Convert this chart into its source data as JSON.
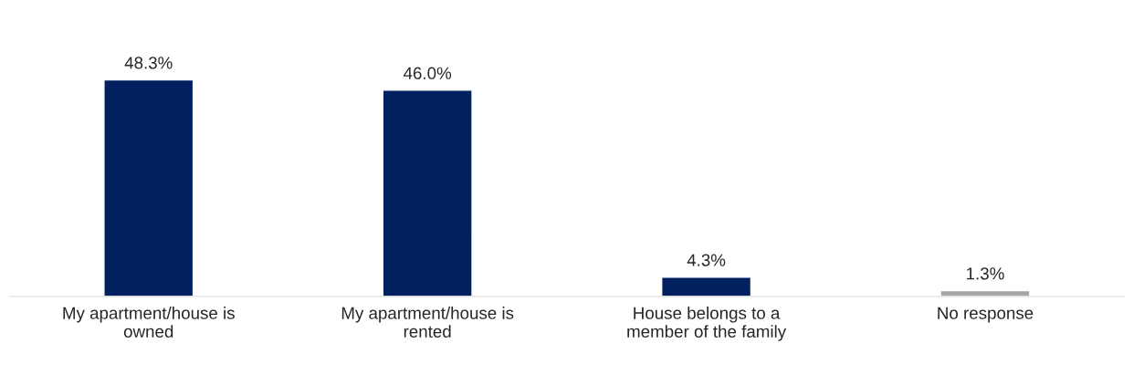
{
  "chart_data": {
    "type": "bar",
    "categories": [
      "My apartment/house is owned",
      "My apartment/house is rented",
      "House belongs to a member of the family",
      "No response"
    ],
    "values": [
      48.3,
      46.0,
      4.3,
      1.3
    ],
    "colors": [
      "#002060",
      "#002060",
      "#002060",
      "#a6a6a6"
    ],
    "value_labels": [
      "48.3%",
      "46.0%",
      "4.3%",
      "1.3%"
    ],
    "grid": false,
    "legend": false
  }
}
